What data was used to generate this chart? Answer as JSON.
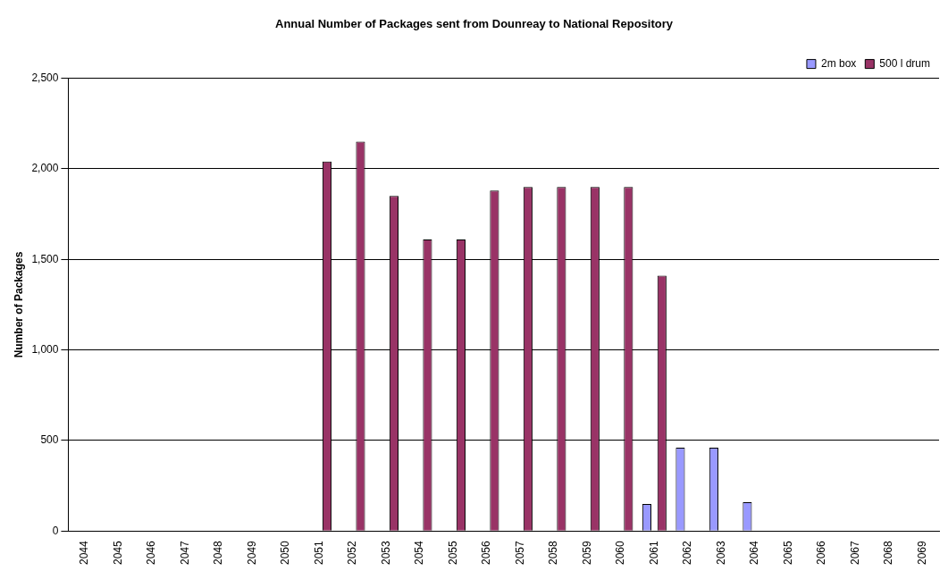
{
  "chart_data": {
    "type": "bar",
    "title": "Annual Number of Packages sent from Dounreay to National Repository",
    "ylabel": "Number of Packages",
    "categories": [
      "2044",
      "2045",
      "2046",
      "2047",
      "2048",
      "2049",
      "2050",
      "2051",
      "2052",
      "2053",
      "2054",
      "2055",
      "2056",
      "2057",
      "2058",
      "2059",
      "2060",
      "2061",
      "2062",
      "2063",
      "2064",
      "2065",
      "2066",
      "2067",
      "2068",
      "2069"
    ],
    "series": [
      {
        "name": "2m box",
        "color": "#9999ff",
        "values": [
          0,
          0,
          0,
          0,
          0,
          0,
          0,
          0,
          0,
          0,
          0,
          0,
          0,
          0,
          0,
          0,
          null,
          150,
          460,
          460,
          160,
          0,
          0,
          0,
          0,
          0
        ]
      },
      {
        "name": "500 l drum",
        "color": "#993366",
        "values": [
          0,
          0,
          0,
          0,
          0,
          0,
          0,
          2040,
          2150,
          1850,
          1610,
          1610,
          1880,
          1900,
          1900,
          1900,
          1900,
          1410,
          0,
          0,
          0,
          0,
          0,
          0,
          0,
          0
        ]
      }
    ],
    "ylim": [
      0,
      2500
    ],
    "yticks": [
      {
        "value": 0,
        "label": "0"
      },
      {
        "value": 500,
        "label": "500"
      },
      {
        "value": 1000,
        "label": "1,000"
      },
      {
        "value": 1500,
        "label": "1,500"
      },
      {
        "value": 2000,
        "label": "2,000"
      },
      {
        "value": 2500,
        "label": "2,500"
      }
    ],
    "grid": "y",
    "legend": "top right"
  }
}
